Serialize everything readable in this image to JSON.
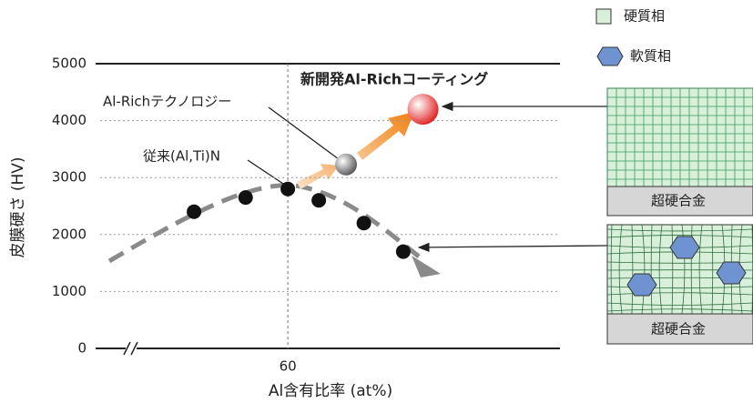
{
  "chart_data": {
    "type": "scatter",
    "ylabel": "皮膜硬さ (HV)",
    "xlabel": "Al含有比率 (at%)",
    "xlim": [
      40,
      89
    ],
    "xticks": [
      60
    ],
    "ylim": [
      0,
      5000
    ],
    "yticks": [
      0,
      1000,
      2000,
      3000,
      4000,
      5000
    ],
    "series": [
      {
        "name": "従来(Al,Ti)N",
        "color": "#111111",
        "x": [
          50,
          55.5,
          60,
          63.3,
          68.1,
          72.3
        ],
        "values": [
          2400,
          2650,
          2800,
          2600,
          2200,
          1700
        ]
      },
      {
        "name": "Al-Richテクノロジー",
        "color": "#555555",
        "x": [
          66.2
        ],
        "values": [
          3230
        ]
      },
      {
        "name": "新開発Al-Richコーティング",
        "color": "#e02020",
        "x": [
          74.4
        ],
        "values": [
          4200
        ]
      }
    ]
  },
  "diagram": {
    "legend": [
      "硬質相",
      "軟質相"
    ],
    "substrate": [
      "超硬合金",
      "超硬合金"
    ]
  }
}
